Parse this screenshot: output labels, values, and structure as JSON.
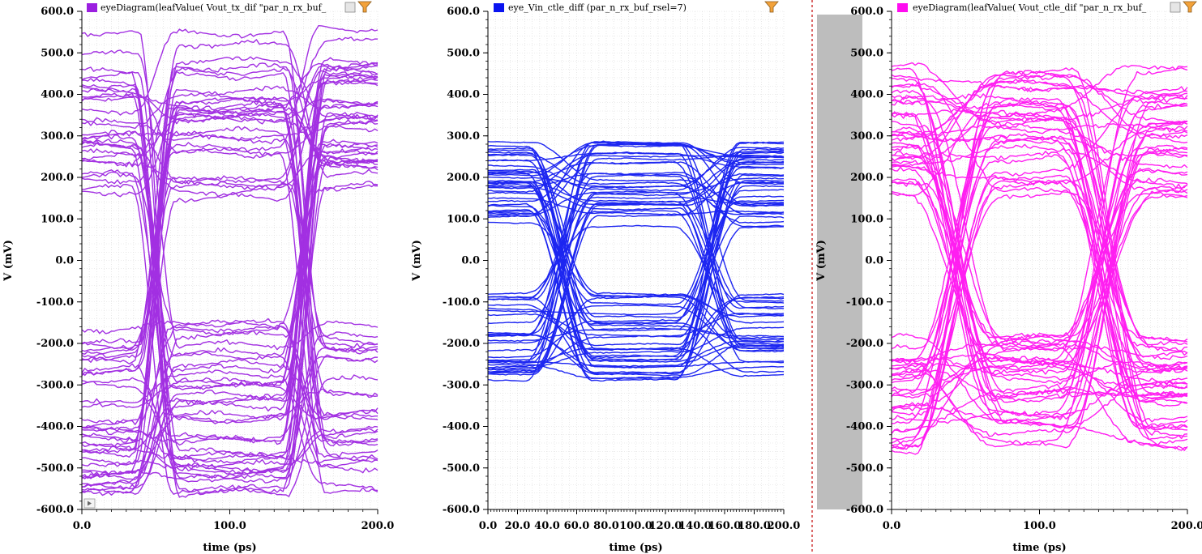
{
  "colors": {
    "purple": "#9b1fe0",
    "blue": "#0a14f0",
    "magenta": "#ff0cf0",
    "divider": "#c81818",
    "gray_band": "#bdbdbd",
    "marker": "#f3a23a"
  },
  "chart_data": [
    {
      "type": "line",
      "subtype": "eye-diagram",
      "legend": "eyeDiagram(leafValue( Vout_tx_dif \"par_n_rx_buf_",
      "color": "#9b1fe0",
      "xlabel": "time (ps)",
      "ylabel": "V (mV)",
      "xlim": [
        0,
        200
      ],
      "ylim": [
        -600,
        600
      ],
      "xticks": [
        0,
        100,
        200
      ],
      "xtick_labels": [
        "0.0",
        "100.0",
        "200.0"
      ],
      "yticks": [
        600,
        500,
        400,
        300,
        200,
        100,
        0,
        -100,
        -200,
        -300,
        -400,
        -500,
        -600
      ],
      "ytick_labels": [
        "600.0",
        "500.0",
        "400.0",
        "300.0",
        "200.0",
        "100.0",
        "0.0",
        "-100.0",
        "-200.0",
        "-300.0",
        "-400.0",
        "-500.0",
        "-600.0"
      ],
      "grid": true,
      "eye": {
        "ui_ps": 100,
        "crossings": [
          50,
          150
        ],
        "crossing_level": 0,
        "high_levels": [
          150,
          560
        ],
        "low_levels": [
          -560,
          -140
        ]
      }
    },
    {
      "type": "line",
      "subtype": "eye-diagram",
      "legend": "eye_Vin_ctle_diff (par_n_rx_buf_rsel=7)",
      "color": "#0a14f0",
      "xlabel": "time (ps)",
      "ylabel": "V (mV)",
      "xlim": [
        0,
        200
      ],
      "ylim": [
        -600,
        600
      ],
      "xticks": [
        0,
        20,
        40,
        60,
        80,
        100,
        120,
        140,
        160,
        180,
        200
      ],
      "xtick_labels": [
        "0.0",
        "20.0",
        "40.0",
        "60.0",
        "80.0",
        "100.0",
        "120.0",
        "140.0",
        "160.0",
        "180.0",
        "200.0"
      ],
      "yticks": [
        600,
        500,
        400,
        300,
        200,
        100,
        0,
        -100,
        -200,
        -300,
        -400,
        -500,
        -600
      ],
      "ytick_labels": [
        "600.0",
        "500.0",
        "400.0",
        "300.0",
        "200.0",
        "100.0",
        "0.0",
        "-100.0",
        "-200.0",
        "-300.0",
        "-400.0",
        "-500.0",
        "-600.0"
      ],
      "grid": true,
      "eye": {
        "ui_ps": 100,
        "crossings": [
          50,
          150
        ],
        "crossing_level": 0,
        "high_levels": [
          80,
          290
        ],
        "low_levels": [
          -290,
          -80
        ]
      }
    },
    {
      "type": "line",
      "subtype": "eye-diagram",
      "legend": "eyeDiagram(leafValue( Vout_ctle_dif \"par_n_rx_buf_",
      "color": "#ff0cf0",
      "xlabel": "time (ps)",
      "ylabel": "V (mV)",
      "xlim": [
        0,
        200
      ],
      "ylim": [
        -600,
        600
      ],
      "xticks": [
        0,
        100,
        200
      ],
      "xtick_labels": [
        "0.0",
        "100.0",
        "200.0"
      ],
      "yticks": [
        600,
        500,
        400,
        300,
        200,
        100,
        0,
        -100,
        -200,
        -300,
        -400,
        -500,
        -600
      ],
      "ytick_labels": [
        "600.0",
        "500.0",
        "400.0",
        "300.0",
        "200.0",
        "100.0",
        "0.0",
        "-100.0",
        "-200.0",
        "-300.0",
        "-400.0",
        "-500.0",
        "-600.0"
      ],
      "grid": true,
      "eye": {
        "ui_ps": 100,
        "crossings": [
          45,
          145
        ],
        "crossing_level": 0,
        "high_levels": [
          150,
          470
        ],
        "low_levels": [
          -470,
          -180
        ]
      }
    }
  ]
}
